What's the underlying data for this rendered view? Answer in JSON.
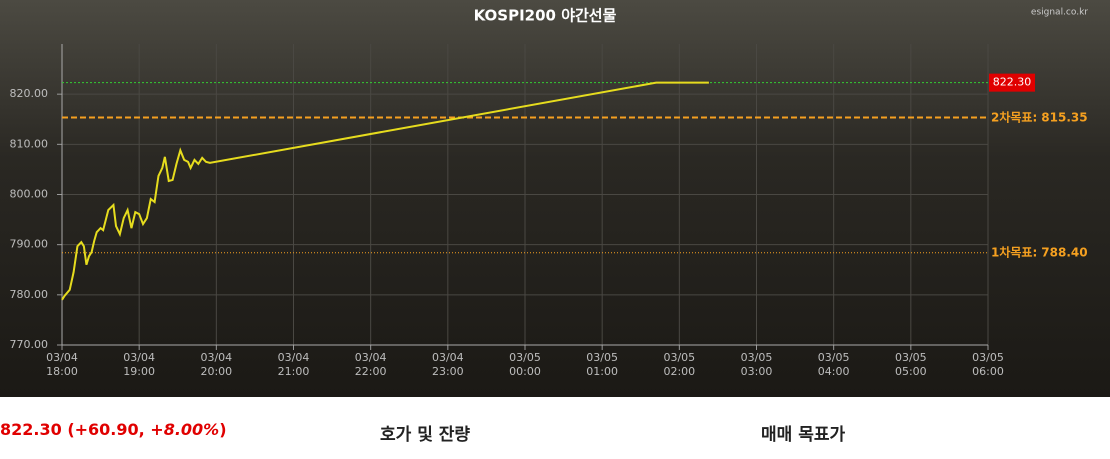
{
  "chart_data": {
    "type": "line",
    "title": "KOSPI200 야간선물",
    "source": "esignal.co.kr",
    "x": [
      "03/04 18:00",
      "03/04 18:02",
      "03/04 18:06",
      "03/04 18:09",
      "03/04 18:12",
      "03/04 18:15",
      "03/04 18:17",
      "03/04 18:19",
      "03/04 18:21",
      "03/04 18:23",
      "03/04 18:25",
      "03/04 18:27",
      "03/04 18:30",
      "03/04 18:32",
      "03/04 18:36",
      "03/04 18:40",
      "03/04 18:42",
      "03/04 18:45",
      "03/04 18:48",
      "03/04 18:51",
      "03/04 18:54",
      "03/04 18:57",
      "03/04 19:00",
      "03/04 19:03",
      "03/04 19:06",
      "03/04 19:09",
      "03/04 19:12",
      "03/04 19:15",
      "03/04 19:18",
      "03/04 19:20",
      "03/04 19:23",
      "03/04 19:26",
      "03/04 19:29",
      "03/04 19:32",
      "03/04 19:35",
      "03/04 19:38",
      "03/04 19:40",
      "03/04 19:43",
      "03/04 19:46",
      "03/04 19:49",
      "03/04 19:52",
      "03/04 19:55",
      "03/05 01:42",
      "03/05 02:23"
    ],
    "series": [
      {
        "name": "KOSPI200",
        "color": "#e6dc1e",
        "values": [
          779.0,
          779.8,
          781.0,
          784.5,
          789.7,
          790.5,
          789.7,
          786.0,
          787.7,
          788.5,
          790.7,
          792.5,
          793.3,
          792.9,
          796.9,
          797.9,
          793.7,
          792.1,
          795.3,
          796.9,
          793.3,
          796.5,
          796.1,
          794.1,
          795.3,
          799.1,
          798.5,
          803.7,
          805.3,
          807.5,
          802.7,
          802.9,
          806.1,
          808.8,
          806.9,
          806.5,
          805.3,
          806.9,
          806.1,
          807.3,
          806.5,
          806.3,
          822.3,
          822.3
        ]
      }
    ],
    "xlim": [
      "03/04 18:00",
      "03/05 06:00"
    ],
    "xticks": [
      "03/04 18:00",
      "03/04 19:00",
      "03/04 20:00",
      "03/04 21:00",
      "03/04 22:00",
      "03/04 23:00",
      "03/05 00:00",
      "03/05 01:00",
      "03/05 02:00",
      "03/05 03:00",
      "03/05 04:00",
      "03/05 05:00",
      "03/05 06:00"
    ],
    "ylim": [
      770,
      830
    ],
    "yticks": [
      {
        "value": 770,
        "label": "770.00"
      },
      {
        "value": 780,
        "label": "780.00"
      },
      {
        "value": 790,
        "label": "790.00"
      },
      {
        "value": 800,
        "label": "800.00"
      },
      {
        "value": 810,
        "label": "810.00"
      },
      {
        "value": 820,
        "label": "820.00"
      }
    ],
    "grid": true,
    "last_price": {
      "value": 822.3,
      "label": "822.30",
      "color": "#33cc33",
      "box_color": "#e00000"
    },
    "reference_lines": [
      {
        "name": "2차목표:",
        "value": 815.35,
        "value_label": "815.35",
        "color": "#f5a020",
        "style": "dashed"
      },
      {
        "name": "1차목표:",
        "value": 788.4,
        "value_label": "788.40",
        "color": "#f5a020",
        "style": "dotted"
      }
    ]
  },
  "footer": {
    "quote_main": "822.30 (+60.90, ",
    "quote_pct": "+8.00%",
    "quote_close": ")",
    "tab_1": "호가 및 잔량",
    "tab_2": "매매 목표가"
  }
}
